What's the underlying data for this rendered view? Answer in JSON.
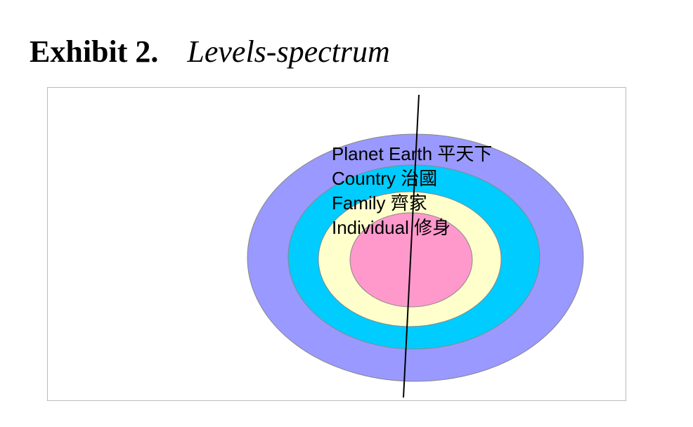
{
  "header": {
    "label": "Exhibit 2.",
    "title": "Levels-spectrum"
  },
  "levels": [
    {
      "label": "Planet Earth  平天下"
    },
    {
      "label": "Country  治國"
    },
    {
      "label": "Family  齊家"
    },
    {
      "label": "Individual  修身"
    }
  ]
}
